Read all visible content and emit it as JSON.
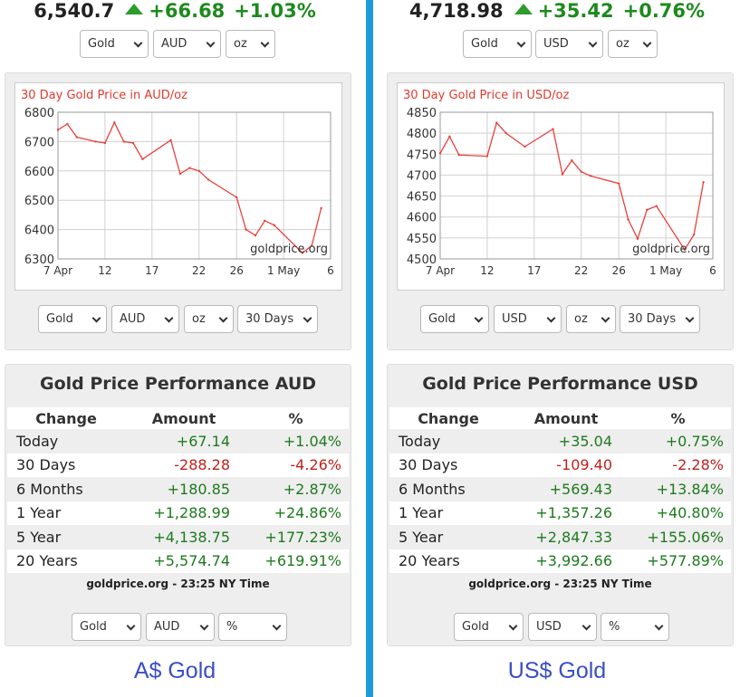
{
  "panels": [
    {
      "price": "6,540.7",
      "change": "+66.68",
      "change_pct": "+1.03%",
      "top_selects": [
        "Gold",
        "AUD",
        "oz"
      ],
      "chart_selects": [
        "Gold",
        "AUD",
        "oz",
        "30 Days"
      ],
      "perf_title": "Gold Price Performance AUD",
      "perf_headers": [
        "Change",
        "Amount",
        "%"
      ],
      "perf_rows": [
        {
          "label": "Today",
          "amount": "+67.14",
          "pct": "+1.04%",
          "sign": "pos"
        },
        {
          "label": "30 Days",
          "amount": "-288.28",
          "pct": "-4.26%",
          "sign": "neg"
        },
        {
          "label": "6 Months",
          "amount": "+180.85",
          "pct": "+2.87%",
          "sign": "pos"
        },
        {
          "label": "1 Year",
          "amount": "+1,288.99",
          "pct": "+24.86%",
          "sign": "pos"
        },
        {
          "label": "5 Year",
          "amount": "+4,138.75",
          "pct": "+177.23%",
          "sign": "pos"
        },
        {
          "label": "20 Years",
          "amount": "+5,574.74",
          "pct": "+619.91%",
          "sign": "pos"
        }
      ],
      "perf_note": "goldprice.org - 23:25 NY Time",
      "perf_selects": [
        "Gold",
        "AUD",
        "%"
      ],
      "link_label": "A$ Gold"
    },
    {
      "price": "4,718.98",
      "change": "+35.42",
      "change_pct": "+0.76%",
      "top_selects": [
        "Gold",
        "USD",
        "oz"
      ],
      "chart_selects": [
        "Gold",
        "USD",
        "oz",
        "30 Days"
      ],
      "perf_title": "Gold Price Performance USD",
      "perf_headers": [
        "Change",
        "Amount",
        "%"
      ],
      "perf_rows": [
        {
          "label": "Today",
          "amount": "+35.04",
          "pct": "+0.75%",
          "sign": "pos"
        },
        {
          "label": "30 Days",
          "amount": "-109.40",
          "pct": "-2.28%",
          "sign": "neg"
        },
        {
          "label": "6 Months",
          "amount": "+569.43",
          "pct": "+13.84%",
          "sign": "pos"
        },
        {
          "label": "1 Year",
          "amount": "+1,357.26",
          "pct": "+40.80%",
          "sign": "pos"
        },
        {
          "label": "5 Year",
          "amount": "+2,847.33",
          "pct": "+155.06%",
          "sign": "pos"
        },
        {
          "label": "20 Years",
          "amount": "+3,992.66",
          "pct": "+577.89%",
          "sign": "pos"
        }
      ],
      "perf_note": "goldprice.org - 23:25 NY Time",
      "perf_selects": [
        "Gold",
        "USD",
        "%"
      ],
      "link_label": "US$ Gold"
    }
  ],
  "colors": {
    "up": "#1e8a1e",
    "down": "#c0201a",
    "line": "#e8413c",
    "divider": "#1e9bdc",
    "link": "#3a4fc4"
  },
  "chart_data": [
    {
      "type": "line",
      "title": "30 Day Gold Price in AUD/oz",
      "watermark": "goldprice.org",
      "xlabel": "",
      "ylabel": "",
      "x_ticks": [
        "7 Apr",
        "12",
        "17",
        "22",
        "26",
        "1 May",
        "6"
      ],
      "x_tick_days": [
        7,
        12,
        17,
        22,
        26,
        31,
        36
      ],
      "ylim": [
        6300,
        6800
      ],
      "y_ticks": [
        6300,
        6400,
        6500,
        6600,
        6700,
        6800
      ],
      "grid": true,
      "series": [
        {
          "x": [
            7,
            8,
            9,
            11,
            12,
            13,
            14,
            15,
            16,
            19,
            20,
            21,
            22,
            23,
            26,
            27,
            28,
            29,
            30,
            33,
            34,
            35
          ],
          "values": [
            6740,
            6760,
            6715,
            6700,
            6695,
            6765,
            6700,
            6695,
            6640,
            6705,
            6590,
            6610,
            6600,
            6570,
            6510,
            6400,
            6380,
            6430,
            6415,
            6320,
            6345,
            6473
          ]
        }
      ]
    },
    {
      "type": "line",
      "title": "30 Day Gold Price in USD/oz",
      "watermark": "goldprice.org",
      "xlabel": "",
      "ylabel": "",
      "x_ticks": [
        "7 Apr",
        "12",
        "17",
        "22",
        "26",
        "1 May",
        "6"
      ],
      "x_tick_days": [
        7,
        12,
        17,
        22,
        26,
        31,
        36
      ],
      "ylim": [
        4500,
        4850
      ],
      "y_ticks": [
        4500,
        4550,
        4600,
        4650,
        4700,
        4750,
        4800,
        4850
      ],
      "grid": true,
      "series": [
        {
          "x": [
            7,
            8,
            9,
            12,
            13,
            14,
            16,
            19,
            20,
            21,
            22,
            23,
            26,
            27,
            28,
            29,
            30,
            33,
            34,
            35
          ],
          "values": [
            4752,
            4792,
            4748,
            4745,
            4825,
            4800,
            4768,
            4810,
            4702,
            4735,
            4708,
            4698,
            4680,
            4594,
            4548,
            4617,
            4626,
            4522,
            4558,
            4683
          ]
        }
      ]
    }
  ]
}
